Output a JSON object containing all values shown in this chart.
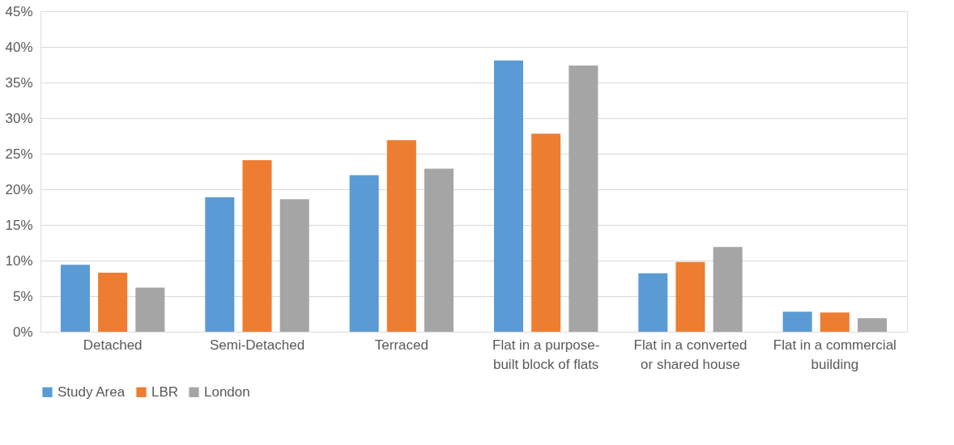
{
  "chart_data": {
    "type": "bar",
    "categories": [
      "Detached",
      "Semi-Detached",
      "Terraced",
      "Flat in a purpose-built block of flats",
      "Flat in a converted or shared house",
      "Flat in a commercial building"
    ],
    "series": [
      {
        "name": "Study Area",
        "color": "#5b9bd5",
        "values": [
          9.4,
          18.9,
          22.0,
          38.1,
          8.2,
          2.8
        ]
      },
      {
        "name": "LBR",
        "color": "#ed7d31",
        "values": [
          8.3,
          24.1,
          26.9,
          27.8,
          9.8,
          2.7
        ]
      },
      {
        "name": "London",
        "color": "#a5a5a5",
        "values": [
          6.2,
          18.6,
          22.9,
          37.4,
          11.9,
          1.9
        ]
      }
    ],
    "ylim": [
      0,
      45
    ],
    "yticks": [
      {
        "value": 0,
        "label": "0%"
      },
      {
        "value": 5,
        "label": "5%"
      },
      {
        "value": 10,
        "label": "10%"
      },
      {
        "value": 15,
        "label": "15%"
      },
      {
        "value": 20,
        "label": "20%"
      },
      {
        "value": 25,
        "label": "25%"
      },
      {
        "value": 30,
        "label": "30%"
      },
      {
        "value": 35,
        "label": "35%"
      },
      {
        "value": 40,
        "label": "40%"
      },
      {
        "value": 45,
        "label": "45%"
      }
    ],
    "grid": "y",
    "legend": "bottom"
  }
}
